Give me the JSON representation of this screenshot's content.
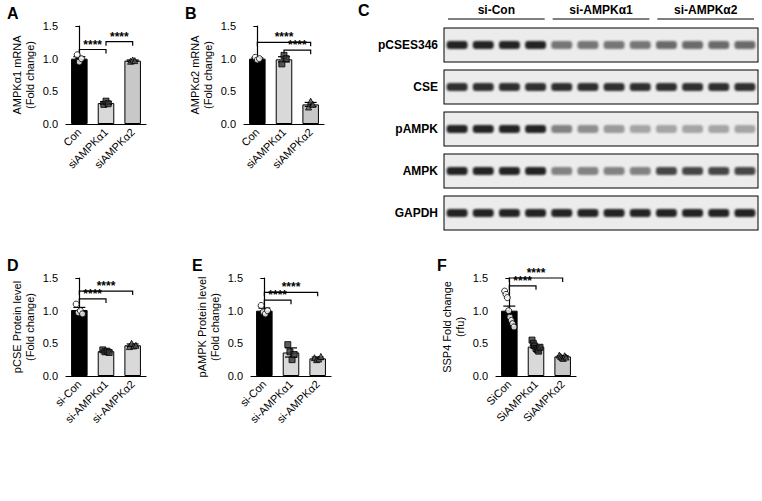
{
  "chart_data": [
    {
      "type": "bar",
      "title": "A",
      "y_label": [
        "AMPKα1 mRNA",
        "(Fold change)"
      ],
      "categories": [
        "Con",
        "siAMPKα1",
        "siAMPKα2"
      ],
      "values": [
        1.0,
        0.32,
        0.97
      ],
      "errors": [
        0.03,
        0.02,
        0.01
      ],
      "points": [
        [
          1.06,
          0.95,
          1.0
        ],
        [
          0.3,
          0.35,
          0.31
        ],
        [
          0.96,
          0.98,
          0.97
        ]
      ],
      "colors": [
        "#000000",
        "#d9d9d9",
        "#c8c8c8"
      ],
      "ylim": [
        0,
        1.5
      ],
      "yticks": [
        {
          "value": 0,
          "label": "0.0"
        },
        0.5,
        {
          "value": 1,
          "label": "1.0"
        },
        1.5
      ],
      "grid": false,
      "annotations": [
        {
          "from": "Con",
          "to": "siAMPKα1",
          "text": "****"
        },
        {
          "from": "siAMPKα1",
          "to": "siAMPKα2",
          "text": "****"
        }
      ]
    },
    {
      "type": "bar",
      "title": "B",
      "y_label": [
        "AMPKα2 mRNA",
        "(Fold change)"
      ],
      "categories": [
        "Con",
        "siAMPKα1",
        "siAMPKα2"
      ],
      "values": [
        1.0,
        0.99,
        0.3
      ],
      "errors": [
        0.01,
        0.04,
        0.03
      ],
      "points": [
        [
          1.02,
          0.98,
          1.0
        ],
        [
          0.92,
          1.05,
          1.0
        ],
        [
          0.26,
          0.35,
          0.3
        ]
      ],
      "colors": [
        "#000000",
        "#d9d9d9",
        "#c8c8c8"
      ],
      "ylim": [
        0,
        1.5
      ],
      "yticks": [
        {
          "value": 0,
          "label": "0.0"
        },
        0.5,
        {
          "value": 1,
          "label": "1.0"
        },
        1.5
      ],
      "grid": false,
      "annotations": [
        {
          "from": "siAMPKα1",
          "to": "siAMPKα2",
          "text": "****"
        },
        {
          "from": "Con",
          "to": "siAMPKα2",
          "text": "****"
        }
      ]
    },
    {
      "type": "bar",
      "title": "D",
      "y_label": [
        "pCSE Protein level",
        "(Fold change)"
      ],
      "categories": [
        "si-Con",
        "si-AMPKα1",
        "si-AMPKα2"
      ],
      "values": [
        1.01,
        0.38,
        0.47
      ],
      "errors": [
        0.04,
        0.01,
        0.02
      ],
      "points": [
        [
          1.1,
          0.97,
          1.0,
          0.95
        ],
        [
          0.4,
          0.37,
          0.38,
          0.36
        ],
        [
          0.45,
          0.5,
          0.46,
          0.47
        ]
      ],
      "colors": [
        "#000000",
        "#d9d9d9",
        "#d9d9d9"
      ],
      "ylim": [
        0,
        1.5
      ],
      "yticks": [
        {
          "value": 0,
          "label": "0.0"
        },
        0.5,
        {
          "value": 1,
          "label": "1.0"
        },
        1.5
      ],
      "grid": false,
      "annotations": [
        {
          "from": "si-Con",
          "to": "si-AMPKα1",
          "text": "****"
        },
        {
          "from": "si-Con",
          "to": "si-AMPKα2",
          "text": "****"
        }
      ]
    },
    {
      "type": "bar",
      "title": "E",
      "y_label": [
        "pAMPK Protein level",
        "(Fold change)"
      ],
      "categories": [
        "si-Con",
        "si-AMPKα1",
        "si-AMPKα2"
      ],
      "values": [
        1.0,
        0.36,
        0.27
      ],
      "errors": [
        0.04,
        0.07,
        0.02
      ],
      "points": [
        [
          1.08,
          0.98,
          0.95,
          1.0
        ],
        [
          0.48,
          0.37,
          0.25,
          0.33
        ],
        [
          0.28,
          0.25,
          0.26,
          0.3
        ]
      ],
      "colors": [
        "#000000",
        "#d9d9d9",
        "#d9d9d9"
      ],
      "ylim": [
        0,
        1.5
      ],
      "yticks": [
        {
          "value": 0,
          "label": "0.0"
        },
        0.5,
        {
          "value": 1,
          "label": "1.0"
        },
        1.5
      ],
      "grid": false,
      "annotations": [
        {
          "from": "si-Con",
          "to": "si-AMPKα1",
          "text": "****"
        },
        {
          "from": "si-Con",
          "to": "si-AMPKα2",
          "text": "****"
        }
      ]
    },
    {
      "type": "bar",
      "title": "F",
      "y_label": [
        "SSP4 Fold change",
        "(rfu)"
      ],
      "categories": [
        "SiCon",
        "SiAMPKα1",
        "SiAMPKα2"
      ],
      "values": [
        1.0,
        0.45,
        0.3
      ],
      "errors": [
        0.07,
        0.02,
        0.01
      ],
      "points": [
        [
          1.3,
          1.25,
          1.2,
          1.0,
          0.9,
          0.85,
          0.8,
          0.75
        ],
        [
          0.55,
          0.5,
          0.46,
          0.42,
          0.4,
          0.38,
          0.44
        ],
        [
          0.32,
          0.3,
          0.28,
          0.27,
          0.31,
          0.29
        ]
      ],
      "colors": [
        "#000000",
        "#d9d9d9",
        "#c8c8c8"
      ],
      "ylim": [
        0,
        1.5
      ],
      "yticks": [
        {
          "value": 0,
          "label": "0.0"
        },
        0.5,
        {
          "value": 1,
          "label": "1.0"
        },
        1.5
      ],
      "grid": false,
      "annotations": [
        {
          "from": "SiCon",
          "to": "SiAMPKα1",
          "text": "****"
        },
        {
          "from": "SiCon",
          "to": "SiAMPKα2",
          "text": "****"
        }
      ]
    }
  ],
  "blot": {
    "title": "C",
    "groups": [
      {
        "label": "si-Con",
        "lanes": 4
      },
      {
        "label": "si-AMPKα1",
        "lanes": 4
      },
      {
        "label": "si-AMPKα2",
        "lanes": 4
      }
    ],
    "rows": [
      {
        "label": "pCSES346",
        "band_intensity": [
          0.85,
          0.85,
          0.85,
          0.85,
          0.5,
          0.5,
          0.5,
          0.5,
          0.55,
          0.55,
          0.55,
          0.55
        ]
      },
      {
        "label": "CSE",
        "band_intensity": [
          0.8,
          0.8,
          0.8,
          0.8,
          0.8,
          0.8,
          0.8,
          0.8,
          0.8,
          0.8,
          0.8,
          0.8
        ]
      },
      {
        "label": "pAMPK",
        "band_intensity": [
          0.85,
          0.85,
          0.85,
          0.85,
          0.45,
          0.4,
          0.35,
          0.3,
          0.3,
          0.3,
          0.3,
          0.3
        ]
      },
      {
        "label": "AMPK",
        "band_intensity": [
          0.85,
          0.85,
          0.85,
          0.85,
          0.45,
          0.45,
          0.45,
          0.45,
          0.7,
          0.7,
          0.7,
          0.7
        ]
      },
      {
        "label": "GAPDH",
        "band_intensity": [
          0.85,
          0.85,
          0.85,
          0.85,
          0.85,
          0.85,
          0.85,
          0.85,
          0.85,
          0.85,
          0.85,
          0.85
        ]
      }
    ]
  }
}
